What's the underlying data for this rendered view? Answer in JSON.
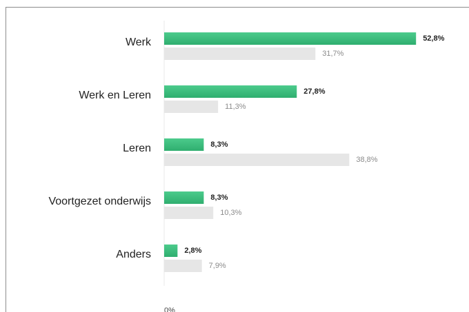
{
  "chart_data": {
    "type": "bar",
    "orientation": "horizontal",
    "categories": [
      "Werk",
      "Werk en Leren",
      "Leren",
      "Voortgezet onderwijs",
      "Anders"
    ],
    "series": [
      {
        "color": "#3dbb7e",
        "values": [
          52.8,
          27.8,
          8.3,
          8.3,
          2.8
        ],
        "value_labels": [
          "52,8%",
          "27,8%",
          "8,3%",
          "8,3%",
          "2,8%"
        ]
      },
      {
        "color": "#e6e6e6",
        "values": [
          31.7,
          11.3,
          38.8,
          10.3,
          7.9
        ],
        "value_labels": [
          "31,7%",
          "11,3%",
          "38,8%",
          "10,3%",
          "7,9%"
        ]
      }
    ],
    "xlim": [
      0,
      60
    ],
    "xticks": [
      {
        "value": 0,
        "label": "0%"
      }
    ]
  }
}
